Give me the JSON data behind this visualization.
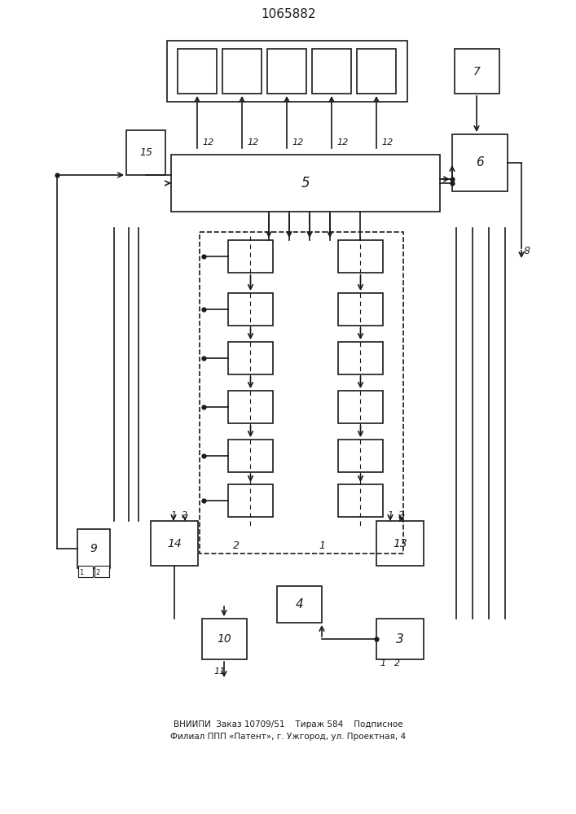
{
  "title": "1065882",
  "bottom_text_line1": "ВНИИПИ  Заказ 10709/51    Тираж 584    Подписное",
  "bottom_text_line2": "Филиал ППП «Патент», г. Ужгород, ул. Проектная, 4",
  "background_color": "#ffffff",
  "line_color": "#1a1a1a",
  "box_color": "#ffffff",
  "text_color": "#1a1a1a"
}
